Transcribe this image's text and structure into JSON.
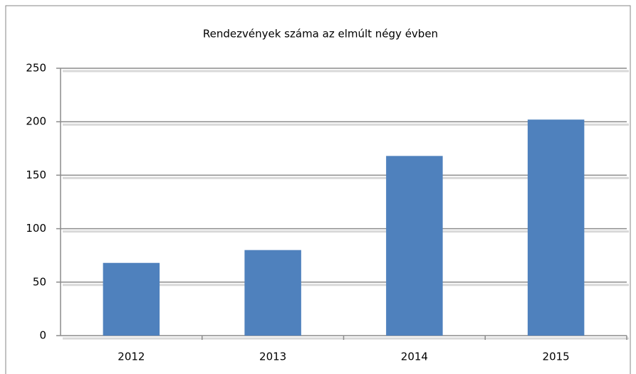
{
  "chart_data": {
    "type": "bar",
    "title": "Rendezvények száma az elmúlt négy évben",
    "categories": [
      "2012",
      "2013",
      "2014",
      "2015"
    ],
    "values": [
      68,
      80,
      168,
      202
    ],
    "color": "#4f81bd",
    "ylim": [
      0,
      250
    ],
    "yticks": [
      0,
      50,
      100,
      150,
      200,
      250
    ],
    "grid": true
  }
}
